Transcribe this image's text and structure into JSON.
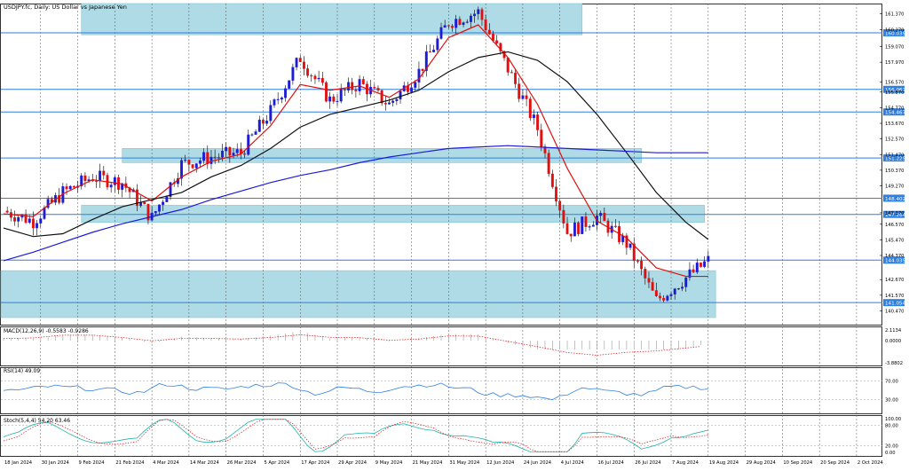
{
  "header": {
    "title": "USDJPY.fc, Daily:  US Dollar vs Japanese Yen"
  },
  "panels": {
    "macd": {
      "label": "MACD(12,26,9) -0.5583 -0.9286",
      "ticks": [
        "2.1134",
        "0.0000",
        "-3.8802"
      ]
    },
    "rsi": {
      "label": "RSI(14) 49.09",
      "ticks": [
        "70.00",
        "30.00"
      ]
    },
    "stoch": {
      "label": "Stoch(5,4,4) 54.20 63.46",
      "ticks": [
        "100.00",
        "80.00",
        "20.00",
        "0.00"
      ]
    }
  },
  "chart_data": {
    "type": "line",
    "title": "USDJPY.fc, Daily:  US Dollar vs Japanese Yen",
    "ylim": [
      139.5,
      162.1
    ],
    "price_ticks": [
      "161.370",
      "160.270",
      "159.070",
      "157.970",
      "156.570",
      "155.870",
      "154.770",
      "153.670",
      "152.570",
      "151.470",
      "150.370",
      "149.270",
      "147.370",
      "146.570",
      "145.470",
      "144.370",
      "142.670",
      "141.570",
      "140.470"
    ],
    "x_tick_labels": [
      "18 Jan 2024",
      "30 Jan 2024",
      "9 Feb 2024",
      "21 Feb 2024",
      "4 Mar 2024",
      "14 Mar 2024",
      "26 Mar 2024",
      "5 Apr 2024",
      "17 Apr 2024",
      "29 Apr 2024",
      "9 May 2024",
      "21 May 2024",
      "31 May 2024",
      "12 Jun 2024",
      "24 Jun 2024",
      "4 Jul 2024",
      "16 Jul 2024",
      "26 Jul 2024",
      "7 Aug 2024",
      "19 Aug 2024",
      "29 Aug 2024",
      "10 Sep 2024",
      "20 Sep 2024",
      "2 Oct 2024"
    ],
    "horizontal_levels": [
      {
        "price": "160.039",
        "value": 160.04
      },
      {
        "price": "156.062",
        "value": 156.06
      },
      {
        "price": "154.467",
        "value": 154.47
      },
      {
        "price": "151.225",
        "value": 151.23
      },
      {
        "price": "148.402",
        "value": 148.4
      },
      {
        "price": "147.264",
        "value": 147.26
      },
      {
        "price": "144.035",
        "value": 144.04
      },
      {
        "price": "141.054",
        "value": 141.05
      }
    ],
    "zones": [
      {
        "x_from": 21,
        "x_to": 156,
        "y_from": 159.9,
        "y_to": 162.1
      },
      {
        "x_from": 32,
        "x_to": 172,
        "y_from": 150.9,
        "y_to": 151.9
      },
      {
        "x_from": 21,
        "x_to": 189,
        "y_from": 146.7,
        "y_to": 147.9
      },
      {
        "x_from": -6,
        "x_to": 192,
        "y_from": 140.0,
        "y_to": 143.3
      }
    ],
    "series": [
      {
        "name": "close",
        "color": "#e01010",
        "style": "candles",
        "x": [
          0,
          8,
          16,
          24,
          32,
          40,
          48,
          56,
          64,
          72,
          80,
          88,
          96,
          104,
          112,
          120,
          128,
          136,
          144,
          152,
          160,
          168,
          176,
          184,
          190
        ],
        "y": [
          147.5,
          146.8,
          148.8,
          149.9,
          149.5,
          147.0,
          150.8,
          151.3,
          151.6,
          154.5,
          158.3,
          155.3,
          156.5,
          155.0,
          157.3,
          160.8,
          161.5,
          157.5,
          153.3,
          146.0,
          147.1,
          145.2,
          141.2,
          142.8,
          144.0
        ]
      },
      {
        "name": "",
        "color": "#e01010",
        "style": "line",
        "x": [
          0,
          8,
          16,
          24,
          32,
          40,
          48,
          56,
          64,
          72,
          80,
          88,
          96,
          104,
          112,
          120,
          128,
          136,
          144,
          152,
          160,
          168,
          176,
          184,
          190
        ],
        "y": [
          147.3,
          147.1,
          148.7,
          149.7,
          149.4,
          148.2,
          149.9,
          151.0,
          151.5,
          153.5,
          156.4,
          156.0,
          156.3,
          155.5,
          156.8,
          159.7,
          160.6,
          158.3,
          155.0,
          150.5,
          146.8,
          145.6,
          143.5,
          142.9,
          142.9
        ]
      },
      {
        "name": "",
        "color": "#111111",
        "style": "line",
        "x": [
          0,
          8,
          16,
          24,
          32,
          40,
          48,
          56,
          64,
          72,
          80,
          88,
          96,
          104,
          112,
          120,
          128,
          136,
          144,
          152,
          160,
          168,
          176,
          184,
          190
        ],
        "y": [
          146.3,
          145.7,
          145.9,
          146.9,
          147.8,
          148.3,
          148.8,
          149.9,
          150.7,
          151.9,
          153.4,
          154.3,
          154.8,
          155.3,
          156.0,
          157.3,
          158.3,
          158.7,
          158.1,
          156.6,
          154.3,
          151.6,
          148.8,
          146.7,
          145.5
        ]
      },
      {
        "name": "",
        "color": "#1c1cd6",
        "style": "line",
        "x": [
          0,
          8,
          16,
          24,
          32,
          40,
          48,
          56,
          64,
          72,
          80,
          88,
          96,
          104,
          112,
          120,
          128,
          136,
          144,
          152,
          160,
          168,
          176,
          184,
          190
        ],
        "y": [
          144.0,
          144.6,
          145.3,
          146.0,
          146.6,
          147.1,
          147.6,
          148.3,
          148.9,
          149.5,
          150.0,
          150.4,
          150.9,
          151.3,
          151.6,
          151.9,
          152.0,
          152.1,
          152.0,
          151.9,
          151.8,
          151.7,
          151.6,
          151.6,
          151.6
        ]
      }
    ]
  }
}
